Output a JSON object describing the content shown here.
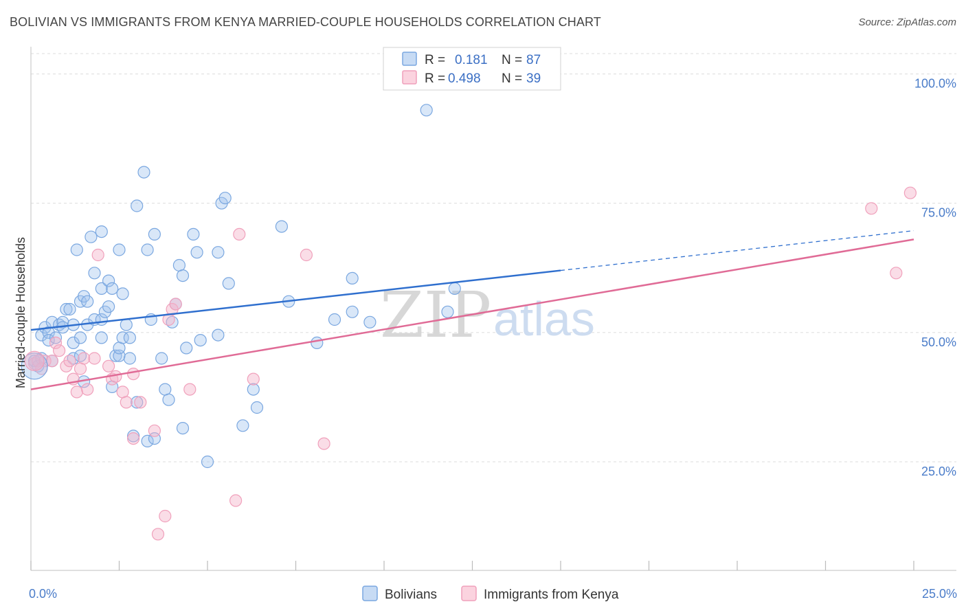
{
  "header": {
    "title": "BOLIVIAN VS IMMIGRANTS FROM KENYA MARRIED-COUPLE HOUSEHOLDS CORRELATION CHART",
    "source": "Source: ZipAtlas.com"
  },
  "watermark": {
    "zip": "ZIP",
    "atlas": "atlas"
  },
  "legend": {
    "rows": [
      {
        "r_label": "R =",
        "r_value": "0.181",
        "n_label": "N =",
        "n_value": "87",
        "color": "#7aa7e0"
      },
      {
        "r_label": "R =",
        "r_value": "0.498",
        "n_label": "N =",
        "n_value": "39",
        "color": "#f0a0bb"
      }
    ]
  },
  "chart_data": {
    "type": "scatter",
    "title": "BOLIVIAN VS IMMIGRANTS FROM KENYA MARRIED-COUPLE HOUSEHOLDS CORRELATION CHART",
    "xlabel": "",
    "ylabel": "Married-couple Households",
    "xlim": [
      0,
      25
    ],
    "ylim": [
      4,
      105
    ],
    "x_tick_labels": [
      "0.0%",
      "25.0%"
    ],
    "y_tick_labels": [
      "100.0%",
      "75.0%",
      "50.0%",
      "25.0%"
    ],
    "y_ticks": [
      100,
      75,
      50,
      25
    ],
    "grid": true,
    "series": [
      {
        "name": "Bolivians",
        "color": "#7aa7e0",
        "trend": {
          "x0": 0,
          "y0": 50.5,
          "x1": 15,
          "y1": 62.0,
          "dash_to_x": 25,
          "dash_to_y": 69.7
        },
        "points": [
          [
            0.1,
            44.5
          ],
          [
            0.2,
            43.5
          ],
          [
            0.3,
            45.0
          ],
          [
            0.3,
            49.5
          ],
          [
            0.4,
            51.0
          ],
          [
            0.5,
            50.0
          ],
          [
            0.5,
            48.5
          ],
          [
            0.6,
            52.0
          ],
          [
            0.7,
            49.0
          ],
          [
            0.8,
            51.5
          ],
          [
            0.9,
            52.0
          ],
          [
            0.9,
            51.0
          ],
          [
            1.0,
            54.5
          ],
          [
            1.1,
            54.5
          ],
          [
            1.2,
            51.5
          ],
          [
            1.2,
            48.0
          ],
          [
            1.2,
            45.0
          ],
          [
            1.3,
            66.0
          ],
          [
            1.4,
            56.0
          ],
          [
            1.4,
            49.0
          ],
          [
            1.5,
            57.0
          ],
          [
            1.5,
            40.5
          ],
          [
            1.6,
            56.0
          ],
          [
            1.6,
            51.5
          ],
          [
            1.7,
            68.5
          ],
          [
            1.8,
            52.5
          ],
          [
            1.8,
            61.5
          ],
          [
            2.0,
            58.5
          ],
          [
            2.0,
            52.5
          ],
          [
            2.0,
            49.0
          ],
          [
            2.0,
            69.5
          ],
          [
            2.1,
            54.0
          ],
          [
            2.2,
            55.0
          ],
          [
            2.2,
            60.0
          ],
          [
            2.3,
            58.5
          ],
          [
            2.3,
            39.5
          ],
          [
            2.4,
            45.5
          ],
          [
            2.5,
            45.5
          ],
          [
            2.5,
            47.0
          ],
          [
            2.5,
            66.0
          ],
          [
            2.6,
            49.0
          ],
          [
            2.6,
            57.5
          ],
          [
            2.7,
            51.5
          ],
          [
            2.8,
            49.0
          ],
          [
            2.8,
            45.0
          ],
          [
            3.0,
            74.5
          ],
          [
            3.0,
            36.5
          ],
          [
            3.2,
            81.0
          ],
          [
            3.3,
            29.0
          ],
          [
            3.3,
            66.0
          ],
          [
            3.4,
            52.5
          ],
          [
            3.5,
            69.0
          ],
          [
            3.5,
            29.5
          ],
          [
            3.7,
            45.0
          ],
          [
            3.8,
            39.0
          ],
          [
            3.9,
            37.0
          ],
          [
            4.1,
            55.5
          ],
          [
            4.2,
            63.0
          ],
          [
            4.3,
            31.5
          ],
          [
            4.3,
            61.0
          ],
          [
            4.4,
            47.0
          ],
          [
            4.6,
            69.0
          ],
          [
            4.7,
            65.5
          ],
          [
            4.8,
            48.5
          ],
          [
            5.0,
            25.0
          ],
          [
            5.3,
            49.5
          ],
          [
            5.3,
            65.5
          ],
          [
            5.4,
            75.0
          ],
          [
            5.5,
            76.0
          ],
          [
            5.6,
            59.5
          ],
          [
            6.0,
            32.0
          ],
          [
            6.3,
            39.0
          ],
          [
            6.4,
            35.5
          ],
          [
            7.1,
            70.5
          ],
          [
            7.3,
            56.0
          ],
          [
            8.1,
            48.0
          ],
          [
            8.6,
            52.5
          ],
          [
            9.1,
            60.5
          ],
          [
            9.1,
            54.0
          ],
          [
            9.6,
            52.0
          ],
          [
            11.2,
            93.0
          ],
          [
            11.8,
            54.0
          ],
          [
            12.0,
            58.5
          ],
          [
            2.9,
            30.0
          ],
          [
            1.4,
            45.5
          ],
          [
            0.6,
            44.5
          ],
          [
            4.0,
            52.0
          ]
        ]
      },
      {
        "name": "Immigrants from Kenya",
        "color": "#f0a0bb",
        "trend": {
          "x0": 0,
          "y0": 39.0,
          "x1": 25,
          "y1": 68.0
        },
        "points": [
          [
            0.1,
            44.0
          ],
          [
            0.2,
            44.5
          ],
          [
            0.4,
            44.5
          ],
          [
            0.6,
            44.5
          ],
          [
            0.7,
            48.0
          ],
          [
            0.8,
            46.5
          ],
          [
            1.0,
            43.5
          ],
          [
            1.1,
            44.5
          ],
          [
            1.2,
            41.0
          ],
          [
            1.3,
            38.5
          ],
          [
            1.4,
            43.0
          ],
          [
            1.5,
            45.0
          ],
          [
            1.6,
            39.0
          ],
          [
            1.8,
            45.0
          ],
          [
            1.9,
            65.0
          ],
          [
            2.2,
            43.5
          ],
          [
            2.3,
            41.0
          ],
          [
            2.4,
            41.5
          ],
          [
            2.6,
            38.5
          ],
          [
            2.7,
            36.5
          ],
          [
            2.9,
            42.0
          ],
          [
            2.9,
            29.5
          ],
          [
            3.1,
            36.5
          ],
          [
            3.5,
            31.0
          ],
          [
            3.6,
            11.0
          ],
          [
            3.8,
            14.5
          ],
          [
            3.9,
            52.5
          ],
          [
            4.0,
            54.5
          ],
          [
            4.1,
            55.5
          ],
          [
            4.5,
            39.0
          ],
          [
            5.8,
            17.5
          ],
          [
            5.9,
            69.0
          ],
          [
            6.3,
            41.0
          ],
          [
            7.8,
            65.0
          ],
          [
            8.3,
            28.5
          ],
          [
            23.8,
            74.0
          ],
          [
            24.5,
            61.5
          ],
          [
            24.9,
            77.0
          ],
          [
            0.3,
            43.0
          ]
        ]
      }
    ]
  },
  "bottom_legend": {
    "items": [
      {
        "label": "Bolivians",
        "color": "#7aa7e0"
      },
      {
        "label": "Immigrants from Kenya",
        "color": "#f0a0bb"
      }
    ]
  }
}
